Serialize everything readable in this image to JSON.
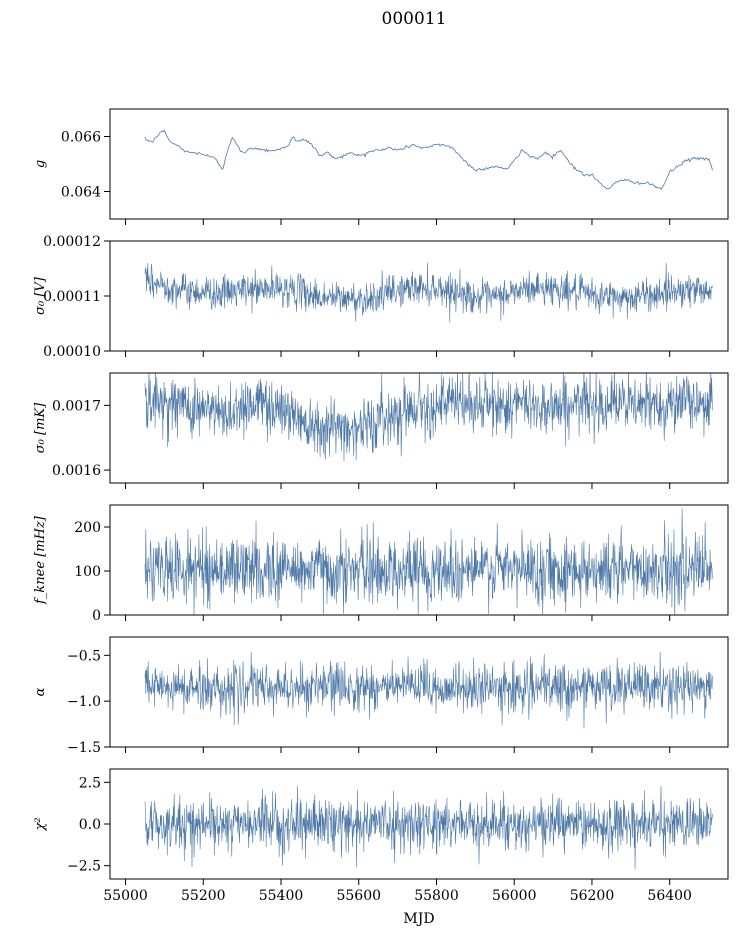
{
  "figure": {
    "title": "000011",
    "xlabel": "MJD",
    "line_color": "#4e79a7"
  },
  "chart_data": [
    {
      "type": "line",
      "ylabel": "g",
      "xlim": [
        54960,
        56550
      ],
      "ylim": [
        0.063,
        0.067
      ],
      "yticks": [
        0.064,
        0.066
      ],
      "ytick_labels": [
        "0.064",
        "0.066"
      ],
      "xticks": [
        55000,
        55200,
        55400,
        55600,
        55800,
        56000,
        56200,
        56400
      ],
      "show_xticklabels": false,
      "series": [
        {
          "x": [
            55050,
            55070,
            55085,
            55100,
            55115,
            55130,
            55150,
            55170,
            55190,
            55210,
            55230,
            55250,
            55260,
            55275,
            55285,
            55300,
            55330,
            55360,
            55390,
            55420,
            55430,
            55440,
            55460,
            55480,
            55500,
            55520,
            55540,
            55560,
            55580,
            55600,
            55620,
            55640,
            55660,
            55680,
            55700,
            55720,
            55740,
            55760,
            55780,
            55800,
            55820,
            55840,
            55860,
            55880,
            55900,
            55920,
            55940,
            55960,
            55980,
            56000,
            56020,
            56040,
            56060,
            56080,
            56100,
            56120,
            56140,
            56160,
            56180,
            56200,
            56220,
            56240,
            56260,
            56280,
            56300,
            56320,
            56340,
            56360,
            56380,
            56400,
            56420,
            56440,
            56460,
            56480,
            56500,
            56510
          ],
          "y": [
            0.0659,
            0.0658,
            0.0661,
            0.0662,
            0.0658,
            0.0657,
            0.0655,
            0.0654,
            0.0654,
            0.0653,
            0.0652,
            0.0648,
            0.0654,
            0.066,
            0.0657,
            0.0654,
            0.0656,
            0.0655,
            0.0655,
            0.0657,
            0.066,
            0.0658,
            0.0659,
            0.0657,
            0.0653,
            0.0654,
            0.0652,
            0.0653,
            0.0654,
            0.0653,
            0.0654,
            0.0655,
            0.0655,
            0.0656,
            0.0655,
            0.0656,
            0.0657,
            0.0656,
            0.0656,
            0.0657,
            0.0657,
            0.0656,
            0.0653,
            0.065,
            0.0648,
            0.0648,
            0.0649,
            0.0649,
            0.0648,
            0.0651,
            0.0655,
            0.0653,
            0.0652,
            0.0654,
            0.0653,
            0.0655,
            0.0651,
            0.0648,
            0.0646,
            0.0646,
            0.0643,
            0.0641,
            0.0643,
            0.0644,
            0.0644,
            0.0643,
            0.0643,
            0.0642,
            0.0641,
            0.0647,
            0.0649,
            0.0651,
            0.0652,
            0.0652,
            0.0652,
            0.0648
          ],
          "noise": 8e-05
        }
      ]
    },
    {
      "type": "line",
      "ylabel": "σ₀ [V]",
      "xlim": [
        54960,
        56550
      ],
      "ylim": [
        0.0001,
        0.00012
      ],
      "yticks": [
        0.0001,
        0.00011,
        0.00012
      ],
      "ytick_labels": [
        "0.00010",
        "0.00011",
        "0.00012"
      ],
      "xticks": [
        55000,
        55200,
        55400,
        55600,
        55800,
        56000,
        56200,
        56400
      ],
      "show_xticklabels": false,
      "series": [
        {
          "x": [
            55050,
            55100,
            55150,
            55200,
            55250,
            55300,
            55350,
            55400,
            55450,
            55500,
            55550,
            55600,
            55650,
            55700,
            55750,
            55800,
            55850,
            55900,
            55950,
            56000,
            56050,
            56100,
            56150,
            56200,
            56250,
            56300,
            56350,
            56400,
            56450,
            56510
          ],
          "y": [
            0.0001125,
            0.000112,
            0.000111,
            0.0001108,
            0.0001105,
            0.000111,
            0.0001112,
            0.0001114,
            0.0001108,
            0.0001098,
            0.0001096,
            0.0001094,
            0.00011,
            0.000111,
            0.0001116,
            0.0001115,
            0.0001108,
            0.0001098,
            0.0001096,
            0.0001108,
            0.0001114,
            0.0001115,
            0.0001108,
            0.00011,
            0.0001098,
            0.0001098,
            0.0001102,
            0.000111,
            0.0001112,
            0.0001112
          ],
          "noise": 1.5e-06
        }
      ]
    },
    {
      "type": "line",
      "ylabel": "σ₀ [mK]",
      "xlim": [
        54960,
        56550
      ],
      "ylim": [
        0.00158,
        0.00175
      ],
      "yticks": [
        0.0016,
        0.0017
      ],
      "ytick_labels": [
        "0.0016",
        "0.0017"
      ],
      "xticks": [
        55000,
        55200,
        55400,
        55600,
        55800,
        56000,
        56200,
        56400
      ],
      "show_xticklabels": false,
      "series": [
        {
          "x": [
            55050,
            55100,
            55150,
            55200,
            55250,
            55300,
            55350,
            55400,
            55450,
            55500,
            55550,
            55600,
            55650,
            55700,
            55750,
            55800,
            55850,
            55900,
            55950,
            56000,
            56050,
            56100,
            56150,
            56200,
            56250,
            56300,
            56350,
            56400,
            56450,
            56510
          ],
          "y": [
            0.001705,
            0.001705,
            0.0017,
            0.001695,
            0.001685,
            0.0017,
            0.001705,
            0.001695,
            0.00168,
            0.00167,
            0.001665,
            0.001665,
            0.001675,
            0.00169,
            0.0017,
            0.0017,
            0.001705,
            0.0017,
            0.0017,
            0.0017,
            0.0017,
            0.0017,
            0.0017,
            0.001705,
            0.001705,
            0.0017,
            0.0017,
            0.001705,
            0.001705,
            0.001705
          ],
          "noise": 2.2e-05
        }
      ]
    },
    {
      "type": "line",
      "ylabel": "f_knee [mHz]",
      "xlim": [
        54960,
        56550
      ],
      "ylim": [
        0,
        250
      ],
      "yticks": [
        0,
        100,
        200
      ],
      "ytick_labels": [
        "0",
        "100",
        "200"
      ],
      "xticks": [
        55000,
        55200,
        55400,
        55600,
        55800,
        56000,
        56200,
        56400
      ],
      "show_xticklabels": false,
      "series": [
        {
          "x": [
            55050,
            55300,
            55600,
            55900,
            56200,
            56510
          ],
          "y": [
            105,
            105,
            102,
            103,
            104,
            105
          ],
          "noise": 38
        }
      ]
    },
    {
      "type": "line",
      "ylabel": "α",
      "xlim": [
        54960,
        56550
      ],
      "ylim": [
        -1.5,
        -0.3
      ],
      "yticks": [
        -1.5,
        -1.0,
        -0.5
      ],
      "ytick_labels": [
        "−1.5",
        "−1.0",
        "−0.5"
      ],
      "xticks": [
        55000,
        55200,
        55400,
        55600,
        55800,
        56000,
        56200,
        56400
      ],
      "show_xticklabels": false,
      "series": [
        {
          "x": [
            55050,
            55300,
            55600,
            55900,
            56200,
            56510
          ],
          "y": [
            -0.86,
            -0.86,
            -0.84,
            -0.86,
            -0.85,
            -0.85
          ],
          "noise": 0.13
        }
      ]
    },
    {
      "type": "line",
      "ylabel": "χ²",
      "xlim": [
        54960,
        56550
      ],
      "ylim": [
        -3.3,
        3.3
      ],
      "yticks": [
        -2.5,
        0.0,
        2.5
      ],
      "ytick_labels": [
        "−2.5",
        "0.0",
        "2.5"
      ],
      "xticks": [
        55000,
        55200,
        55400,
        55600,
        55800,
        56000,
        56200,
        56400
      ],
      "show_xticklabels": true,
      "xtick_labels": [
        "55000",
        "55200",
        "55400",
        "55600",
        "55800",
        "56000",
        "56200",
        "56400"
      ],
      "series": [
        {
          "x": [
            55050,
            55300,
            55600,
            55900,
            56200,
            56510
          ],
          "y": [
            0.0,
            0.0,
            0.05,
            0.0,
            0.0,
            0.0
          ],
          "noise": 0.75
        }
      ]
    }
  ]
}
